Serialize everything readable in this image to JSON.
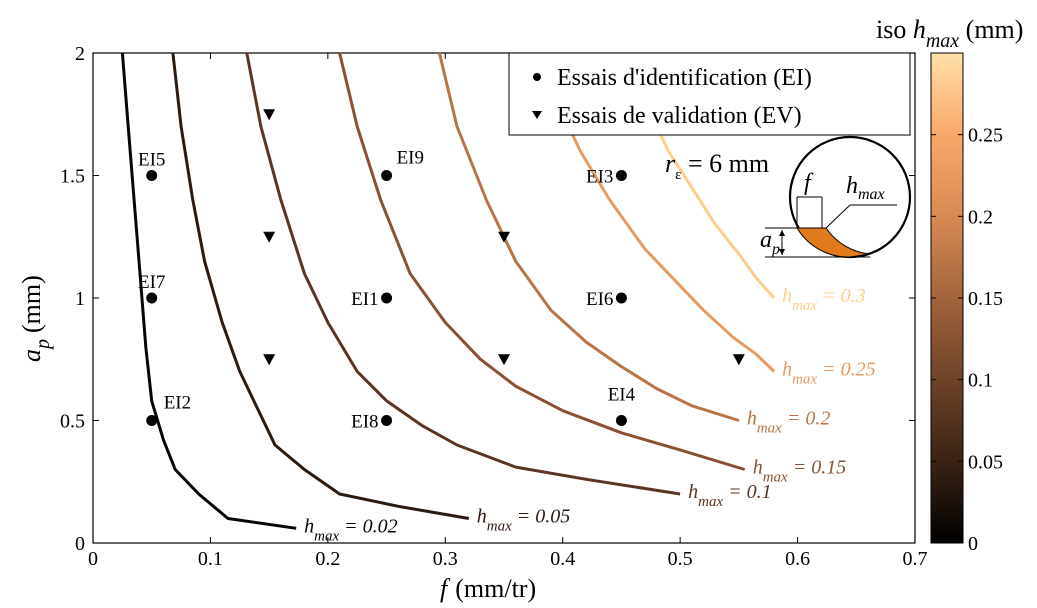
{
  "chart_data": {
    "type": "line",
    "xlabel": {
      "var": "f",
      "unit": "(mm/tr)"
    },
    "ylabel": {
      "var": "a",
      "sub": "p",
      "unit": "(mm)"
    },
    "xlim": [
      0,
      0.7
    ],
    "ylim": [
      0,
      2
    ],
    "xticks": [
      {
        "v": 0,
        "label": "0"
      },
      {
        "v": 0.1,
        "label": "0.1"
      },
      {
        "v": 0.2,
        "label": "0.2"
      },
      {
        "v": 0.3,
        "label": "0.3"
      },
      {
        "v": 0.4,
        "label": "0.4"
      },
      {
        "v": 0.5,
        "label": "0.5"
      },
      {
        "v": 0.6,
        "label": "0.6"
      },
      {
        "v": 0.7,
        "label": "0.7"
      }
    ],
    "yticks": [
      {
        "v": 0,
        "label": "0"
      },
      {
        "v": 0.5,
        "label": "0.5"
      },
      {
        "v": 1,
        "label": "1"
      },
      {
        "v": 1.5,
        "label": "1.5"
      },
      {
        "v": 2,
        "label": "2"
      }
    ],
    "grid": false,
    "legend": {
      "placement": "top-right",
      "entries": [
        {
          "marker": "circle",
          "label": "Essais d'identification (EI)"
        },
        {
          "marker": "triangle-down",
          "label": "Essais de validation (EV)"
        }
      ]
    },
    "iso_curves": [
      {
        "hmax": 0.02,
        "label_var": "h",
        "label_sub": "max",
        "label_rest": " = 0.02",
        "color": "#0a0503",
        "points": [
          [
            0.025,
            2.0
          ],
          [
            0.03,
            1.7
          ],
          [
            0.035,
            1.4
          ],
          [
            0.04,
            1.1
          ],
          [
            0.045,
            0.8
          ],
          [
            0.05,
            0.58
          ],
          [
            0.06,
            0.42
          ],
          [
            0.07,
            0.3
          ],
          [
            0.09,
            0.2
          ],
          [
            0.115,
            0.1
          ],
          [
            0.173,
            0.06
          ]
        ]
      },
      {
        "hmax": 0.05,
        "label_var": "h",
        "label_sub": "max",
        "label_rest": " = 0.05",
        "color": "#2d1a0f",
        "points": [
          [
            0.068,
            2.0
          ],
          [
            0.075,
            1.7
          ],
          [
            0.085,
            1.4
          ],
          [
            0.095,
            1.15
          ],
          [
            0.11,
            0.9
          ],
          [
            0.125,
            0.7
          ],
          [
            0.14,
            0.55
          ],
          [
            0.155,
            0.4
          ],
          [
            0.18,
            0.3
          ],
          [
            0.21,
            0.2
          ],
          [
            0.26,
            0.15
          ],
          [
            0.32,
            0.1
          ]
        ]
      },
      {
        "hmax": 0.1,
        "label_var": "h",
        "label_sub": "max",
        "label_rest": " = 0.1",
        "color": "#5a3520",
        "points": [
          [
            0.131,
            2.0
          ],
          [
            0.143,
            1.7
          ],
          [
            0.16,
            1.4
          ],
          [
            0.18,
            1.1
          ],
          [
            0.2,
            0.9
          ],
          [
            0.225,
            0.7
          ],
          [
            0.25,
            0.58
          ],
          [
            0.28,
            0.48
          ],
          [
            0.31,
            0.4
          ],
          [
            0.36,
            0.31
          ],
          [
            0.42,
            0.26
          ],
          [
            0.5,
            0.2
          ]
        ]
      },
      {
        "hmax": 0.15,
        "label_var": "h",
        "label_sub": "max",
        "label_rest": " = 0.15",
        "color": "#885132",
        "points": [
          [
            0.21,
            2.0
          ],
          [
            0.225,
            1.7
          ],
          [
            0.245,
            1.4
          ],
          [
            0.27,
            1.1
          ],
          [
            0.3,
            0.9
          ],
          [
            0.33,
            0.75
          ],
          [
            0.36,
            0.64
          ],
          [
            0.4,
            0.54
          ],
          [
            0.45,
            0.45
          ],
          [
            0.5,
            0.38
          ],
          [
            0.555,
            0.3
          ]
        ]
      },
      {
        "hmax": 0.2,
        "label_var": "h",
        "label_sub": "max",
        "label_rest": " = 0.2",
        "color": "#b87446",
        "points": [
          [
            0.295,
            2.0
          ],
          [
            0.31,
            1.7
          ],
          [
            0.335,
            1.4
          ],
          [
            0.36,
            1.15
          ],
          [
            0.39,
            0.95
          ],
          [
            0.42,
            0.82
          ],
          [
            0.45,
            0.72
          ],
          [
            0.48,
            0.63
          ],
          [
            0.51,
            0.56
          ],
          [
            0.55,
            0.5
          ]
        ]
      },
      {
        "hmax": 0.25,
        "label_var": "h",
        "label_sub": "max",
        "label_rest": " = 0.25",
        "color": "#e69a60",
        "points": [
          [
            0.38,
            2.0
          ],
          [
            0.395,
            1.8
          ],
          [
            0.415,
            1.6
          ],
          [
            0.44,
            1.4
          ],
          [
            0.47,
            1.2
          ],
          [
            0.5,
            1.05
          ],
          [
            0.52,
            0.95
          ],
          [
            0.545,
            0.84
          ],
          [
            0.565,
            0.77
          ],
          [
            0.58,
            0.7
          ]
        ]
      },
      {
        "hmax": 0.3,
        "label_var": "h",
        "label_sub": "max",
        "label_rest": " = 0.3",
        "color": "#ffcd8a",
        "points": [
          [
            0.455,
            2.0
          ],
          [
            0.47,
            1.8
          ],
          [
            0.49,
            1.6
          ],
          [
            0.51,
            1.45
          ],
          [
            0.53,
            1.3
          ],
          [
            0.55,
            1.18
          ],
          [
            0.565,
            1.08
          ],
          [
            0.58,
            1.0
          ]
        ]
      }
    ],
    "identification_points": [
      {
        "label": "EI5",
        "x": 0.05,
        "y": 1.5
      },
      {
        "label": "EI7",
        "x": 0.05,
        "y": 1.0
      },
      {
        "label": "EI2",
        "x": 0.05,
        "y": 0.5
      },
      {
        "label": "EI9",
        "x": 0.25,
        "y": 1.5
      },
      {
        "label": "EI1",
        "x": 0.25,
        "y": 1.0
      },
      {
        "label": "EI8",
        "x": 0.25,
        "y": 0.5
      },
      {
        "label": "EI3",
        "x": 0.45,
        "y": 1.5
      },
      {
        "label": "EI6",
        "x": 0.45,
        "y": 1.0
      },
      {
        "label": "EI4",
        "x": 0.45,
        "y": 0.5
      }
    ],
    "validation_points": [
      {
        "x": 0.15,
        "y": 1.75
      },
      {
        "x": 0.15,
        "y": 1.25
      },
      {
        "x": 0.15,
        "y": 0.75
      },
      {
        "x": 0.35,
        "y": 1.25
      },
      {
        "x": 0.35,
        "y": 0.75
      },
      {
        "x": 0.55,
        "y": 0.75
      }
    ],
    "colorbar": {
      "title_prefix": "iso ",
      "title_var": "h",
      "title_sub": "max",
      "title_unit": " (mm)",
      "range": [
        0,
        0.3
      ],
      "ticks": [
        {
          "v": 0,
          "label": "0"
        },
        {
          "v": 0.05,
          "label": "0.05"
        },
        {
          "v": 0.1,
          "label": "0.1"
        },
        {
          "v": 0.15,
          "label": "0.15"
        },
        {
          "v": 0.2,
          "label": "0.2"
        },
        {
          "v": 0.25,
          "label": "0.25"
        }
      ],
      "colors": [
        "#000000",
        "#3a2214",
        "#6e4328",
        "#a2643c",
        "#d88a54",
        "#f9a86a",
        "#ffe0a8"
      ]
    },
    "inset": {
      "radius_label_var": "r",
      "radius_label_sub": "ε",
      "radius_label_value": " = 6 mm",
      "f_label": "f",
      "hmax_var": "h",
      "hmax_sub": "max",
      "ap_var": "a",
      "ap_sub": "p",
      "fill_color": "#e07a1c"
    }
  }
}
